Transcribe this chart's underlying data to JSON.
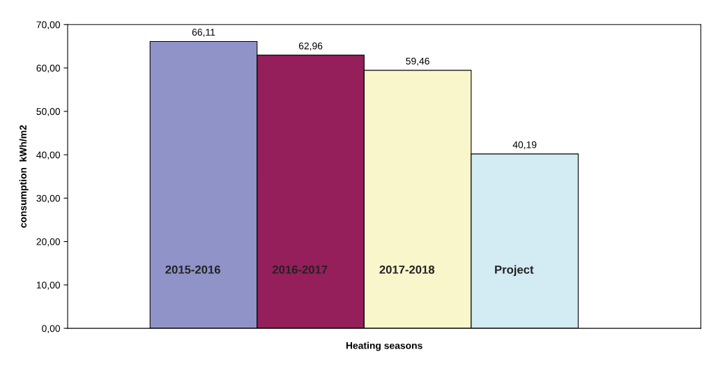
{
  "chart_data": {
    "type": "bar",
    "xlabel": "Heating seasons",
    "ylabel": "consumption  kWh/m2",
    "categories": [
      "2015-2016",
      "2016-2017",
      "2017-2018",
      "Project"
    ],
    "values": [
      66.11,
      62.96,
      59.46,
      40.19
    ],
    "colors": [
      "#9093c8",
      "#951f5a",
      "#faf6cc",
      "#d3ebf2"
    ],
    "value_labels": [
      "66,11",
      "62,96",
      "59,46",
      "40,19"
    ],
    "ylim": [
      0,
      70
    ],
    "yticks": [
      {
        "value": 0,
        "label": "0,00"
      },
      {
        "value": 10,
        "label": "10,00"
      },
      {
        "value": 20,
        "label": "20,00"
      },
      {
        "value": 30,
        "label": "30,00"
      },
      {
        "value": 40,
        "label": "40,00"
      },
      {
        "value": 50,
        "label": "50,00"
      },
      {
        "value": 60,
        "label": "60,00"
      },
      {
        "value": 70,
        "label": "70,00"
      }
    ],
    "grid": false,
    "legend": false
  }
}
